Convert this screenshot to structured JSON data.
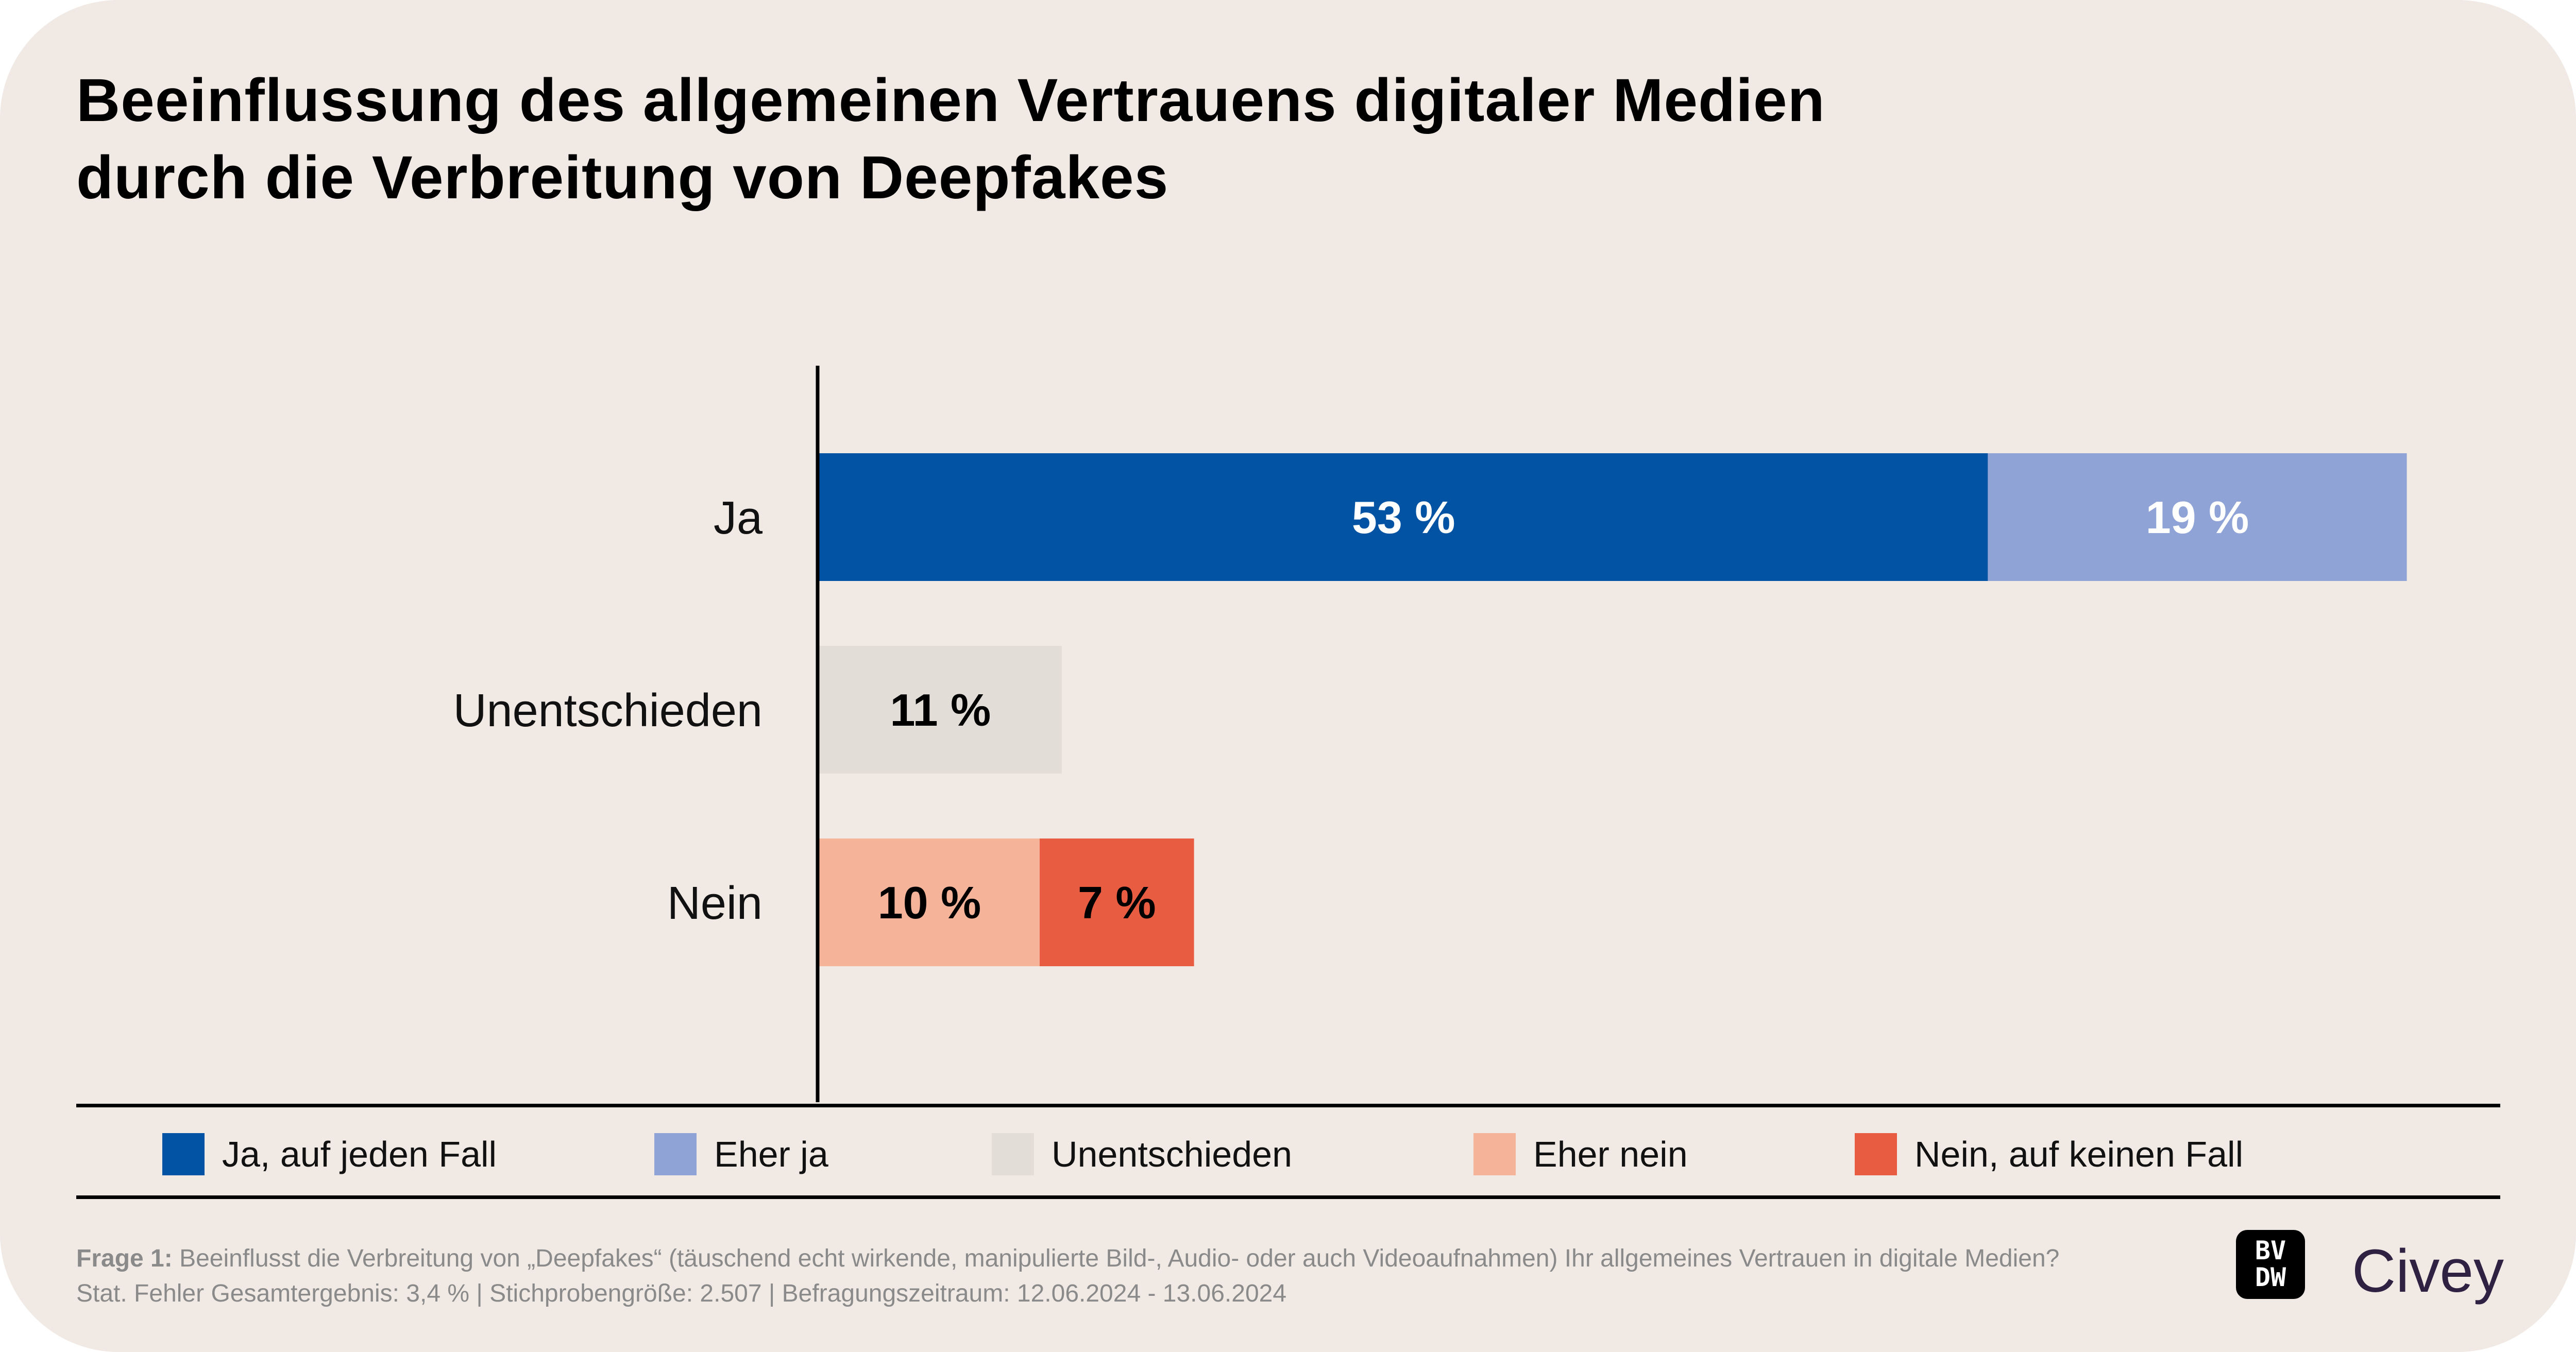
{
  "title_line1": "Beeinflussung des allgemeinen Vertrauens digitaler Medien",
  "title_line2": "durch die Verbreitung von Deepfakes",
  "chart_data": {
    "type": "bar",
    "orientation": "horizontal-stacked",
    "categories": [
      "Ja",
      "Unentschieden",
      "Nein"
    ],
    "series": [
      {
        "name": "Ja, auf jeden Fall",
        "color": "#0353A4",
        "label_color": "#FFFFFF",
        "values": [
          53,
          null,
          null
        ],
        "labels": [
          "53 %",
          "",
          ""
        ]
      },
      {
        "name": "Eher ja",
        "color": "#8FA3D6",
        "label_color": "#FFFFFF",
        "values": [
          19,
          null,
          null
        ],
        "labels": [
          "19 %",
          "",
          ""
        ]
      },
      {
        "name": "Unentschieden",
        "color": "#E2DDD7",
        "label_color": "#000000",
        "values": [
          null,
          11,
          null
        ],
        "labels": [
          "",
          "11 %",
          ""
        ]
      },
      {
        "name": "Eher nein",
        "color": "#F5B49A",
        "label_color": "#000000",
        "values": [
          null,
          null,
          10
        ],
        "labels": [
          "",
          "",
          "10 %"
        ]
      },
      {
        "name": "Nein, auf keinen Fall",
        "color": "#E85C41",
        "label_color": "#000000",
        "values": [
          null,
          null,
          7
        ],
        "labels": [
          "",
          "",
          "7 %"
        ]
      }
    ],
    "unit": "%",
    "grid": false,
    "legend_position": "bottom"
  },
  "footer": {
    "question_label": "Frage 1:",
    "question_text": "Beeinflusst die Verbreitung von „Deepfakes“ (täuschend echt wirkende, manipulierte Bild-, Audio- oder auch Videoaufnahmen) Ihr allgemeines Vertrauen in digitale Medien?",
    "stats": "Stat. Fehler Gesamtergebnis: 3,4 % | Stichprobengröße: 2.507 | Befragungszeitraum: 12.06.2024 - 13.06.2024"
  },
  "logos": {
    "bvdw": "BVDW",
    "bvdw_line1": "BV",
    "bvdw_line2": "DW",
    "civey": "Civey"
  },
  "background": "#F0E9E4"
}
